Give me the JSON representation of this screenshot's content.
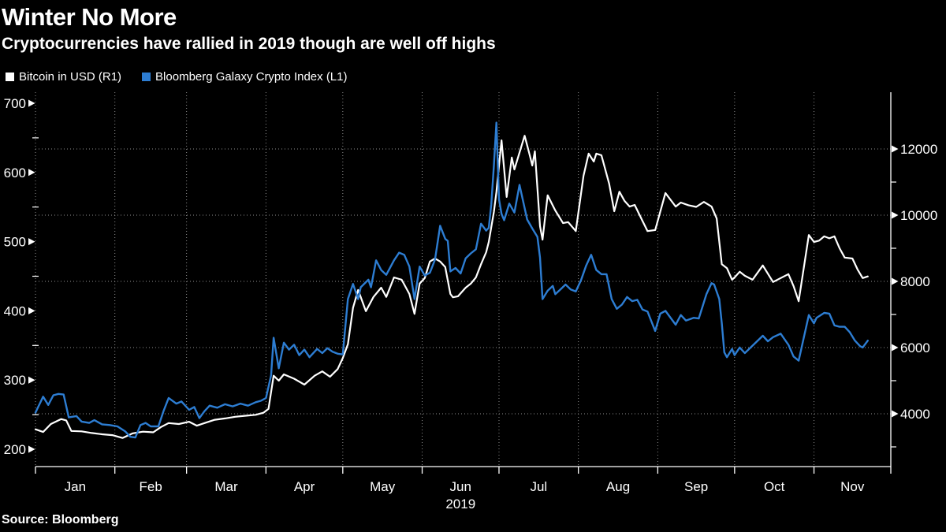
{
  "header": {
    "title": "Winter No More",
    "subtitle": "Cryptocurrencies have rallied in 2019 though are well off highs"
  },
  "legend": [
    {
      "name": "bitcoin-series",
      "label": "Bitcoin in USD (R1)",
      "swatch": "#ffffff"
    },
    {
      "name": "crypto-index-series",
      "label": "Bloomberg Galaxy Crypto Index (L1)",
      "swatch": "#2d7dd2"
    }
  ],
  "source": "Source: Bloomberg",
  "colors": {
    "background": "#000000",
    "text": "#ffffff",
    "grid": "#8f8f8f",
    "axis": "#ffffff",
    "bitcoin_line": "#ffffff",
    "index_line": "#2d7dd2"
  },
  "chart_data": {
    "type": "line",
    "title": "Winter No More",
    "subtitle": "Cryptocurrencies have rallied in 2019 though are well off highs",
    "x_unit": "day_of_year_2019",
    "x_axis": {
      "months": [
        "Jan",
        "Feb",
        "Mar",
        "Apr",
        "May",
        "Jun",
        "Jul",
        "Aug",
        "Sep",
        "Oct",
        "Nov"
      ],
      "month_start_days": [
        0,
        31,
        59,
        90,
        120,
        151,
        181,
        212,
        243,
        273,
        304
      ],
      "domain_days": [
        0,
        334
      ],
      "year_label": "2019",
      "year_under_month": "Jun"
    },
    "y_left": {
      "series": "Bloomberg Galaxy Crypto Index (L1)",
      "ticks": [
        700,
        600,
        500,
        400,
        300,
        200
      ],
      "minor_ticks": [
        650,
        550,
        450,
        350,
        250
      ],
      "range": [
        200,
        700
      ]
    },
    "y_right": {
      "series": "Bitcoin in USD (R1)",
      "ticks": [
        12000,
        10000,
        8000,
        6000,
        4000
      ],
      "minor_ticks": [
        11000,
        9000,
        7000,
        5000,
        3000
      ],
      "range": [
        4000,
        12000
      ]
    },
    "gridlines": {
      "horizontal_at_right_ticks": true,
      "vertical_at_month_starts": true,
      "style": "dotted"
    },
    "legend_position": "top-left",
    "series": [
      {
        "name": "Bitcoin in USD",
        "axis": "right",
        "color": "#ffffff",
        "points": [
          [
            0,
            3530
          ],
          [
            3,
            3450
          ],
          [
            6,
            3690
          ],
          [
            10,
            3840
          ],
          [
            12,
            3800
          ],
          [
            14,
            3480
          ],
          [
            18,
            3470
          ],
          [
            22,
            3420
          ],
          [
            26,
            3380
          ],
          [
            30,
            3355
          ],
          [
            34,
            3270
          ],
          [
            38,
            3410
          ],
          [
            42,
            3460
          ],
          [
            46,
            3440
          ],
          [
            49,
            3600
          ],
          [
            52,
            3720
          ],
          [
            56,
            3690
          ],
          [
            60,
            3760
          ],
          [
            63,
            3640
          ],
          [
            66,
            3720
          ],
          [
            70,
            3820
          ],
          [
            74,
            3860
          ],
          [
            78,
            3910
          ],
          [
            82,
            3940
          ],
          [
            86,
            3970
          ],
          [
            89,
            4030
          ],
          [
            91,
            4150
          ],
          [
            93,
            5150
          ],
          [
            95,
            5000
          ],
          [
            97,
            5190
          ],
          [
            101,
            5060
          ],
          [
            105,
            4880
          ],
          [
            109,
            5150
          ],
          [
            112,
            5280
          ],
          [
            115,
            5120
          ],
          [
            118,
            5350
          ],
          [
            120,
            5680
          ],
          [
            122,
            6100
          ],
          [
            124,
            7200
          ],
          [
            126,
            7740
          ],
          [
            129,
            7100
          ],
          [
            132,
            7530
          ],
          [
            135,
            7810
          ],
          [
            137,
            7530
          ],
          [
            140,
            8120
          ],
          [
            143,
            8050
          ],
          [
            146,
            7620
          ],
          [
            148,
            7020
          ],
          [
            150,
            7930
          ],
          [
            152,
            8100
          ],
          [
            154,
            8600
          ],
          [
            156,
            8690
          ],
          [
            158,
            8600
          ],
          [
            160,
            8430
          ],
          [
            162,
            7620
          ],
          [
            163,
            7520
          ],
          [
            165,
            7550
          ],
          [
            168,
            7810
          ],
          [
            170,
            7930
          ],
          [
            172,
            8120
          ],
          [
            174,
            8520
          ],
          [
            176,
            8880
          ],
          [
            177,
            9190
          ],
          [
            179,
            10100
          ],
          [
            180,
            10700
          ],
          [
            181,
            11500
          ],
          [
            182,
            12260
          ],
          [
            184,
            10550
          ],
          [
            186,
            11740
          ],
          [
            187,
            11380
          ],
          [
            191,
            12400
          ],
          [
            193,
            11810
          ],
          [
            194,
            11500
          ],
          [
            195,
            11930
          ],
          [
            197,
            9670
          ],
          [
            198,
            9260
          ],
          [
            200,
            10600
          ],
          [
            203,
            10140
          ],
          [
            206,
            9760
          ],
          [
            208,
            9790
          ],
          [
            211,
            9520
          ],
          [
            214,
            11190
          ],
          [
            216,
            11860
          ],
          [
            218,
            11620
          ],
          [
            219,
            11860
          ],
          [
            221,
            11810
          ],
          [
            224,
            10950
          ],
          [
            226,
            10120
          ],
          [
            228,
            10710
          ],
          [
            230,
            10430
          ],
          [
            232,
            10260
          ],
          [
            234,
            10310
          ],
          [
            237,
            9830
          ],
          [
            239,
            9520
          ],
          [
            242,
            9550
          ],
          [
            246,
            10670
          ],
          [
            250,
            10260
          ],
          [
            252,
            10380
          ],
          [
            255,
            10300
          ],
          [
            258,
            10250
          ],
          [
            261,
            10400
          ],
          [
            264,
            10260
          ],
          [
            266,
            9900
          ],
          [
            268,
            8520
          ],
          [
            270,
            8400
          ],
          [
            272,
            8050
          ],
          [
            273,
            8120
          ],
          [
            275,
            8290
          ],
          [
            277,
            8170
          ],
          [
            280,
            8050
          ],
          [
            284,
            8480
          ],
          [
            288,
            7980
          ],
          [
            291,
            8100
          ],
          [
            294,
            8220
          ],
          [
            296,
            7860
          ],
          [
            298,
            7400
          ],
          [
            302,
            9400
          ],
          [
            304,
            9190
          ],
          [
            306,
            9230
          ],
          [
            308,
            9360
          ],
          [
            310,
            9300
          ],
          [
            312,
            9360
          ],
          [
            314,
            9000
          ],
          [
            316,
            8720
          ],
          [
            319,
            8690
          ],
          [
            321,
            8360
          ],
          [
            323,
            8100
          ],
          [
            325,
            8150
          ]
        ]
      },
      {
        "name": "Bloomberg Galaxy Crypto Index",
        "axis": "left",
        "color": "#2d7dd2",
        "points": [
          [
            0,
            253
          ],
          [
            3,
            276
          ],
          [
            5,
            264
          ],
          [
            7,
            278
          ],
          [
            9,
            280
          ],
          [
            11,
            279
          ],
          [
            13,
            246
          ],
          [
            16,
            248
          ],
          [
            18,
            240
          ],
          [
            21,
            238
          ],
          [
            23,
            242
          ],
          [
            26,
            236
          ],
          [
            29,
            235
          ],
          [
            32,
            233
          ],
          [
            35,
            226
          ],
          [
            37,
            218
          ],
          [
            39,
            217
          ],
          [
            41,
            235
          ],
          [
            43,
            238
          ],
          [
            45,
            233
          ],
          [
            48,
            233
          ],
          [
            50,
            255
          ],
          [
            52,
            274
          ],
          [
            55,
            266
          ],
          [
            57,
            269
          ],
          [
            60,
            257
          ],
          [
            62,
            261
          ],
          [
            64,
            245
          ],
          [
            66,
            255
          ],
          [
            68,
            263
          ],
          [
            71,
            260
          ],
          [
            74,
            265
          ],
          [
            77,
            262
          ],
          [
            80,
            266
          ],
          [
            83,
            263
          ],
          [
            86,
            268
          ],
          [
            88,
            270
          ],
          [
            90,
            274
          ],
          [
            92,
            307
          ],
          [
            93,
            361
          ],
          [
            95,
            317
          ],
          [
            97,
            354
          ],
          [
            99,
            344
          ],
          [
            101,
            351
          ],
          [
            103,
            336
          ],
          [
            105,
            344
          ],
          [
            107,
            333
          ],
          [
            110,
            345
          ],
          [
            112,
            339
          ],
          [
            114,
            346
          ],
          [
            116,
            341
          ],
          [
            118,
            338
          ],
          [
            120,
            337
          ],
          [
            122,
            417
          ],
          [
            124,
            439
          ],
          [
            126,
            417
          ],
          [
            127,
            434
          ],
          [
            130,
            445
          ],
          [
            131,
            434
          ],
          [
            133,
            473
          ],
          [
            135,
            459
          ],
          [
            137,
            452
          ],
          [
            140,
            473
          ],
          [
            142,
            484
          ],
          [
            144,
            481
          ],
          [
            146,
            464
          ],
          [
            148,
            417
          ],
          [
            150,
            464
          ],
          [
            152,
            451
          ],
          [
            154,
            455
          ],
          [
            156,
            474
          ],
          [
            158,
            523
          ],
          [
            160,
            504
          ],
          [
            161,
            501
          ],
          [
            162,
            457
          ],
          [
            164,
            462
          ],
          [
            166,
            454
          ],
          [
            168,
            476
          ],
          [
            170,
            483
          ],
          [
            172,
            489
          ],
          [
            174,
            526
          ],
          [
            176,
            516
          ],
          [
            177,
            520
          ],
          [
            178,
            554
          ],
          [
            179,
            610
          ],
          [
            180,
            672
          ],
          [
            181,
            561
          ],
          [
            182,
            540
          ],
          [
            183,
            531
          ],
          [
            185,
            555
          ],
          [
            187,
            542
          ],
          [
            189,
            582
          ],
          [
            192,
            532
          ],
          [
            194,
            519
          ],
          [
            196,
            507
          ],
          [
            197,
            477
          ],
          [
            198,
            417
          ],
          [
            200,
            429
          ],
          [
            202,
            436
          ],
          [
            203,
            424
          ],
          [
            205,
            431
          ],
          [
            207,
            438
          ],
          [
            209,
            431
          ],
          [
            211,
            428
          ],
          [
            213,
            444
          ],
          [
            215,
            465
          ],
          [
            217,
            481
          ],
          [
            219,
            459
          ],
          [
            221,
            453
          ],
          [
            223,
            453
          ],
          [
            225,
            417
          ],
          [
            227,
            403
          ],
          [
            229,
            409
          ],
          [
            231,
            420
          ],
          [
            233,
            414
          ],
          [
            235,
            416
          ],
          [
            237,
            402
          ],
          [
            239,
            399
          ],
          [
            242,
            371
          ],
          [
            244,
            396
          ],
          [
            246,
            400
          ],
          [
            250,
            380
          ],
          [
            252,
            394
          ],
          [
            254,
            386
          ],
          [
            257,
            390
          ],
          [
            259,
            389
          ],
          [
            262,
            424
          ],
          [
            264,
            440
          ],
          [
            265,
            438
          ],
          [
            267,
            417
          ],
          [
            268,
            382
          ],
          [
            269,
            340
          ],
          [
            270,
            333
          ],
          [
            272,
            345
          ],
          [
            273,
            336
          ],
          [
            275,
            347
          ],
          [
            277,
            339
          ],
          [
            279,
            346
          ],
          [
            284,
            364
          ],
          [
            286,
            356
          ],
          [
            288,
            362
          ],
          [
            291,
            367
          ],
          [
            294,
            351
          ],
          [
            296,
            334
          ],
          [
            298,
            328
          ],
          [
            302,
            394
          ],
          [
            304,
            382
          ],
          [
            305,
            390
          ],
          [
            308,
            397
          ],
          [
            310,
            396
          ],
          [
            312,
            379
          ],
          [
            314,
            377
          ],
          [
            316,
            377
          ],
          [
            318,
            369
          ],
          [
            320,
            357
          ],
          [
            322,
            349
          ],
          [
            323,
            347
          ],
          [
            325,
            357
          ]
        ]
      }
    ]
  }
}
